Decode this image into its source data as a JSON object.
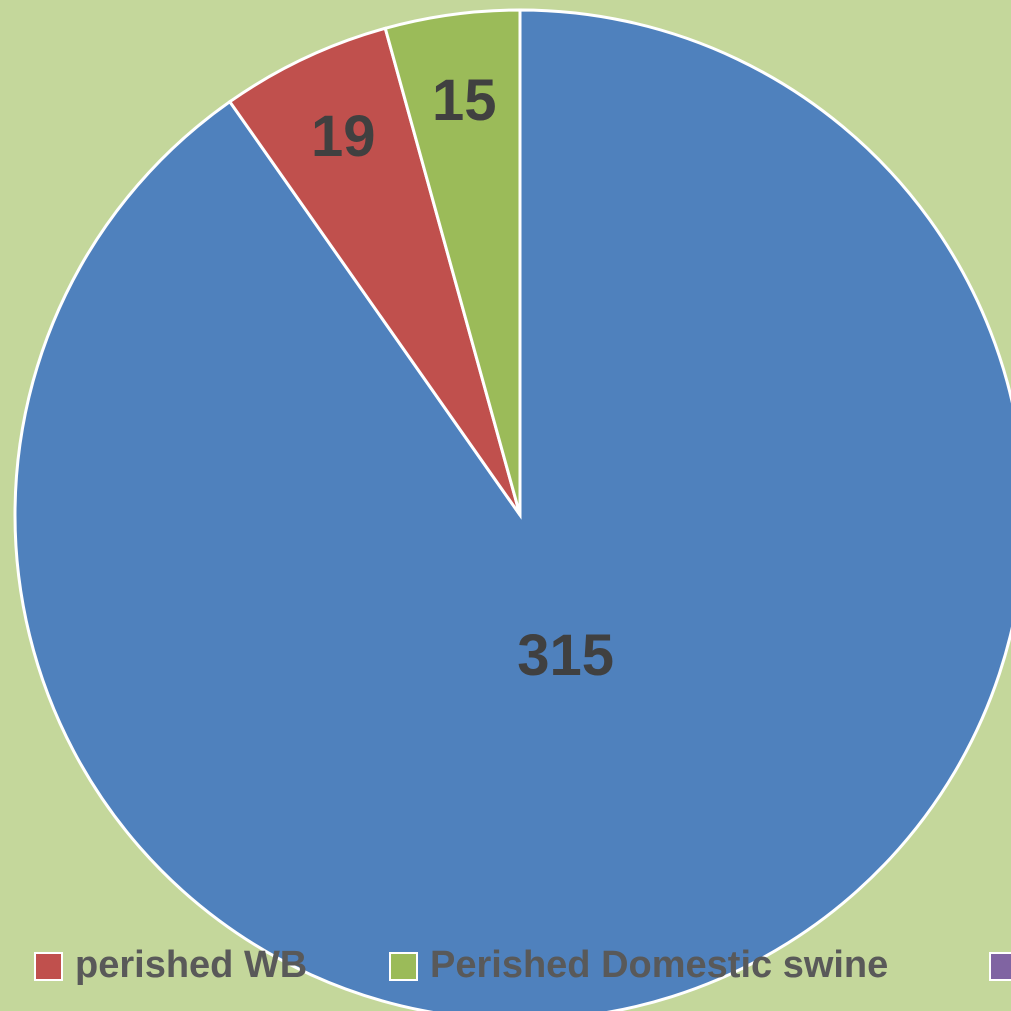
{
  "chart_data": {
    "type": "pie",
    "categories": [
      null,
      "perished WB",
      "Perished Domestic swine",
      null
    ],
    "values": [
      315,
      19,
      15,
      null
    ],
    "colors": [
      "#4f81bd",
      "#c0504d",
      "#9bbb59",
      "#8064a2"
    ],
    "legend": "bottom"
  }
}
